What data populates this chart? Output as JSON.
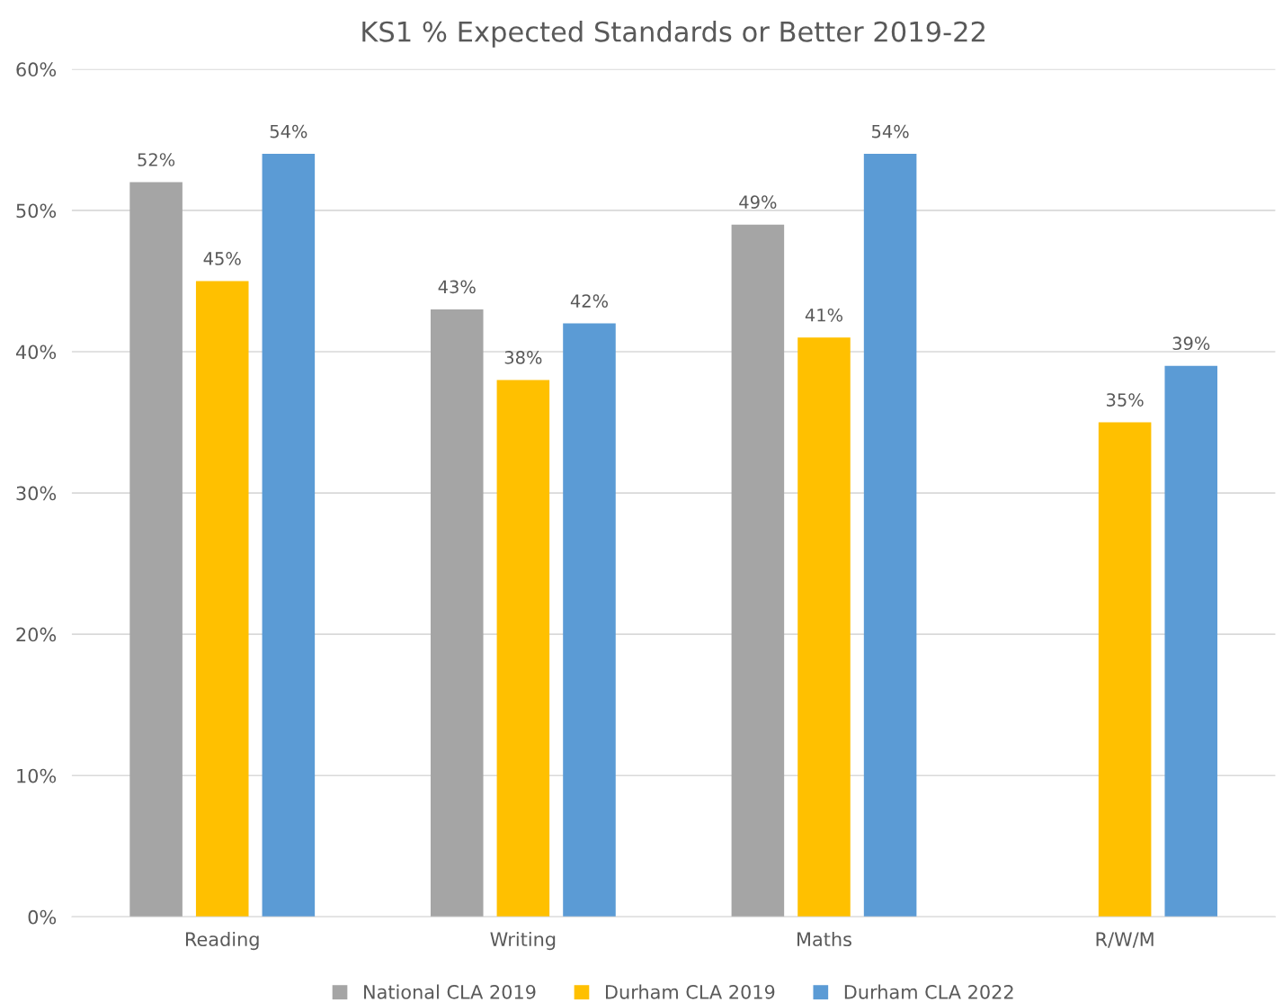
{
  "chart_data": {
    "type": "bar",
    "title": "KS1 % Expected Standards or Better 2019-22",
    "categories": [
      "Reading",
      "Writing",
      "Maths",
      "R/W/M"
    ],
    "series": [
      {
        "name": "National CLA 2019",
        "color": "#a5a5a5",
        "values": [
          52,
          43,
          49,
          null
        ],
        "value_labels": [
          "52%",
          "43%",
          "49%",
          null
        ]
      },
      {
        "name": "Durham CLA 2019",
        "color": "#ffc000",
        "values": [
          45,
          38,
          41,
          35
        ],
        "value_labels": [
          "45%",
          "38%",
          "41%",
          "35%"
        ]
      },
      {
        "name": "Durham CLA 2022",
        "color": "#5b9bd5",
        "values": [
          54,
          42,
          54,
          39
        ],
        "value_labels": [
          "54%",
          "42%",
          "54%",
          "39%"
        ]
      }
    ],
    "ylim": [
      0,
      60
    ],
    "yticks": [
      {
        "value": 0,
        "label": "0%"
      },
      {
        "value": 10,
        "label": "10%"
      },
      {
        "value": 20,
        "label": "20%"
      },
      {
        "value": 30,
        "label": "30%"
      },
      {
        "value": 40,
        "label": "40%"
      },
      {
        "value": 50,
        "label": "50%"
      },
      {
        "value": 60,
        "label": "60%"
      }
    ],
    "grid": "y",
    "legend": "bottom"
  }
}
